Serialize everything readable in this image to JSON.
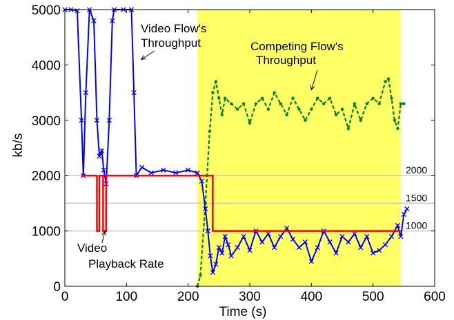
{
  "chart_data": {
    "type": "line",
    "title": "",
    "xlabel": "Time (s)",
    "ylabel": "kb/s",
    "xlim": [
      0,
      600
    ],
    "ylim": [
      0,
      5000
    ],
    "xticks": [
      0,
      100,
      200,
      300,
      400,
      500,
      600
    ],
    "yticks": [
      0,
      1000,
      2000,
      3000,
      4000,
      5000
    ],
    "grid": false,
    "highlight_region": {
      "x_start": 215,
      "x_end": 545,
      "color": "#ffff66"
    },
    "reference_lines": [
      {
        "y": 2000,
        "label": "2000"
      },
      {
        "y": 1500,
        "label": "1500"
      },
      {
        "y": 1000,
        "label": "1000"
      }
    ],
    "series": [
      {
        "role": "video_throughput",
        "color": "#0000ff",
        "style": "solid-x-markers",
        "points": [
          [
            0,
            5000
          ],
          [
            10,
            5000
          ],
          [
            20,
            4980
          ],
          [
            27,
            3000
          ],
          [
            30,
            2000
          ],
          [
            34,
            3500
          ],
          [
            40,
            5000
          ],
          [
            47,
            4800
          ],
          [
            52,
            3000
          ],
          [
            56,
            2350
          ],
          [
            60,
            2450
          ],
          [
            63,
            2100
          ],
          [
            67,
            1850
          ],
          [
            72,
            3000
          ],
          [
            77,
            4800
          ],
          [
            80,
            5000
          ],
          [
            95,
            5000
          ],
          [
            108,
            5000
          ],
          [
            112,
            3500
          ],
          [
            116,
            2000
          ],
          [
            125,
            2150
          ],
          [
            140,
            2050
          ],
          [
            160,
            2100
          ],
          [
            180,
            2050
          ],
          [
            200,
            2100
          ],
          [
            215,
            2050
          ],
          [
            222,
            1900
          ],
          [
            228,
            1400
          ],
          [
            232,
            1000
          ],
          [
            236,
            550
          ],
          [
            240,
            250
          ],
          [
            245,
            400
          ],
          [
            250,
            700
          ],
          [
            255,
            600
          ],
          [
            260,
            900
          ],
          [
            265,
            750
          ],
          [
            270,
            550
          ],
          [
            280,
            700
          ],
          [
            290,
            900
          ],
          [
            300,
            650
          ],
          [
            310,
            1000
          ],
          [
            320,
            800
          ],
          [
            330,
            950
          ],
          [
            340,
            700
          ],
          [
            350,
            900
          ],
          [
            360,
            1050
          ],
          [
            370,
            850
          ],
          [
            380,
            700
          ],
          [
            390,
            800
          ],
          [
            400,
            450
          ],
          [
            410,
            700
          ],
          [
            420,
            1000
          ],
          [
            430,
            800
          ],
          [
            440,
            600
          ],
          [
            450,
            900
          ],
          [
            460,
            800
          ],
          [
            470,
            950
          ],
          [
            480,
            700
          ],
          [
            490,
            900
          ],
          [
            500,
            600
          ],
          [
            510,
            650
          ],
          [
            520,
            750
          ],
          [
            530,
            900
          ],
          [
            540,
            1100
          ],
          [
            545,
            900
          ],
          [
            550,
            1300
          ],
          [
            555,
            1400
          ]
        ]
      },
      {
        "role": "competing_throughput",
        "color": "#008000",
        "style": "dashed-dot-markers",
        "points": [
          [
            215,
            0
          ],
          [
            220,
            200
          ],
          [
            228,
            1500
          ],
          [
            235,
            2800
          ],
          [
            240,
            3500
          ],
          [
            245,
            3700
          ],
          [
            250,
            3400
          ],
          [
            255,
            3100
          ],
          [
            260,
            3400
          ],
          [
            270,
            3300
          ],
          [
            280,
            3200
          ],
          [
            290,
            3300
          ],
          [
            300,
            2950
          ],
          [
            310,
            3300
          ],
          [
            320,
            3400
          ],
          [
            330,
            3200
          ],
          [
            340,
            3500
          ],
          [
            350,
            3300
          ],
          [
            360,
            3100
          ],
          [
            370,
            3400
          ],
          [
            380,
            3200
          ],
          [
            390,
            3000
          ],
          [
            400,
            3200
          ],
          [
            410,
            3400
          ],
          [
            420,
            3300
          ],
          [
            430,
            3400
          ],
          [
            440,
            3100
          ],
          [
            450,
            3200
          ],
          [
            460,
            2850
          ],
          [
            470,
            3300
          ],
          [
            480,
            3000
          ],
          [
            490,
            3300
          ],
          [
            500,
            3400
          ],
          [
            510,
            3300
          ],
          [
            520,
            3700
          ],
          [
            525,
            3750
          ],
          [
            530,
            3400
          ],
          [
            535,
            3000
          ],
          [
            540,
            2850
          ],
          [
            545,
            3300
          ],
          [
            550,
            3300
          ]
        ]
      },
      {
        "role": "playback_rate",
        "color": "#ff0000",
        "style": "solid",
        "points": [
          [
            27,
            2000
          ],
          [
            52,
            2000
          ],
          [
            52,
            1000
          ],
          [
            56,
            1000
          ],
          [
            56,
            2000
          ],
          [
            62,
            2000
          ],
          [
            62,
            1000
          ],
          [
            67,
            1000
          ],
          [
            67,
            2000
          ],
          [
            240,
            2000
          ],
          [
            240,
            1000
          ],
          [
            545,
            1000
          ]
        ]
      }
    ],
    "annotations": [
      {
        "lines": [
          "Video Flow's",
          "Throughput"
        ],
        "target": [
          124,
          4100
        ]
      },
      {
        "lines": [
          "Competing Flow's",
          "Throughput"
        ],
        "target": [
          400,
          3550
        ]
      },
      {
        "lines": [
          "Video",
          "Playback Rate"
        ],
        "target": [
          65,
          1000
        ]
      }
    ]
  }
}
